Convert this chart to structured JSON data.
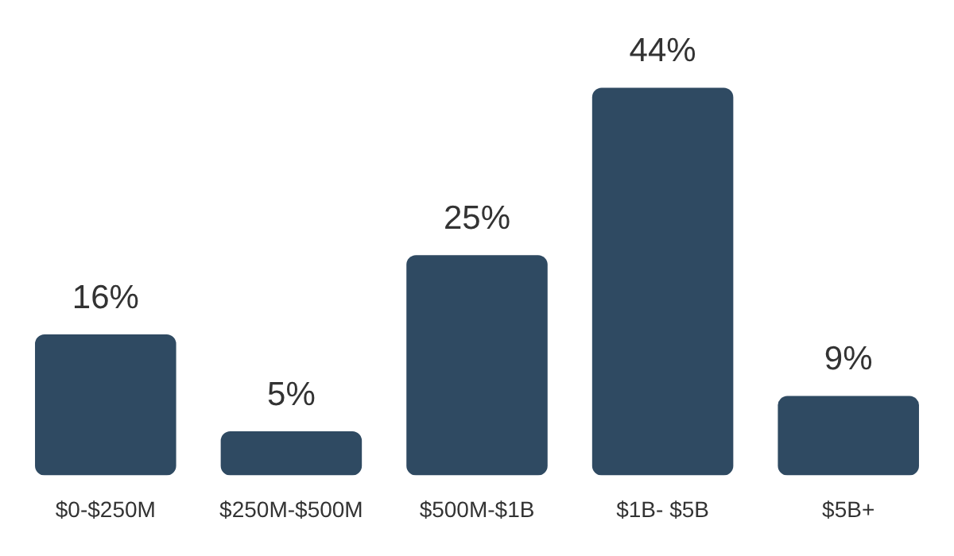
{
  "chart_data": {
    "type": "bar",
    "categories": [
      "$0-$250M",
      "$250M-$500M",
      "$500M-$1B",
      "$1B- $5B",
      "$5B+"
    ],
    "values": [
      16,
      5,
      25,
      44,
      9
    ],
    "color": "#2f4a62",
    "value_labels": [
      "16%",
      "5%",
      "25%",
      "44%",
      "9%"
    ],
    "grid": false,
    "legend": false
  }
}
